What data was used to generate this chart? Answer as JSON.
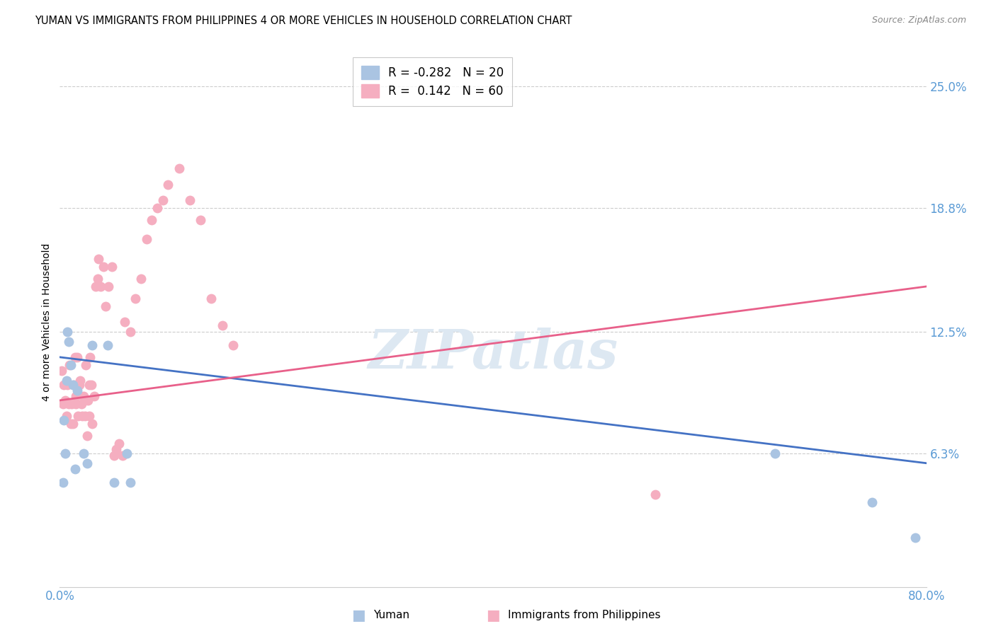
{
  "title": "YUMAN VS IMMIGRANTS FROM PHILIPPINES 4 OR MORE VEHICLES IN HOUSEHOLD CORRELATION CHART",
  "source": "Source: ZipAtlas.com",
  "ylabel": "4 or more Vehicles in Household",
  "ytick_labels": [
    "6.3%",
    "12.5%",
    "18.8%",
    "25.0%"
  ],
  "ytick_values": [
    0.063,
    0.125,
    0.188,
    0.25
  ],
  "xlim": [
    0.0,
    0.8
  ],
  "ylim": [
    -0.005,
    0.265
  ],
  "legend_blue_r": "-0.282",
  "legend_blue_n": "20",
  "legend_pink_r": "0.142",
  "legend_pink_n": "60",
  "legend_label_blue": "Yuman",
  "legend_label_pink": "Immigrants from Philippines",
  "blue_color": "#aac4e2",
  "pink_color": "#f5aec0",
  "blue_line_color": "#4472c4",
  "pink_line_color": "#e8608a",
  "watermark": "ZIPatlas",
  "blue_x": [
    0.003,
    0.004,
    0.005,
    0.006,
    0.007,
    0.008,
    0.01,
    0.012,
    0.014,
    0.016,
    0.022,
    0.025,
    0.03,
    0.044,
    0.05,
    0.062,
    0.065,
    0.66,
    0.75,
    0.79
  ],
  "blue_y": [
    0.048,
    0.08,
    0.063,
    0.1,
    0.125,
    0.12,
    0.108,
    0.098,
    0.055,
    0.095,
    0.063,
    0.058,
    0.118,
    0.118,
    0.048,
    0.063,
    0.048,
    0.063,
    0.038,
    0.02
  ],
  "pink_x": [
    0.002,
    0.003,
    0.004,
    0.005,
    0.006,
    0.007,
    0.008,
    0.009,
    0.01,
    0.011,
    0.012,
    0.013,
    0.014,
    0.015,
    0.015,
    0.016,
    0.017,
    0.018,
    0.019,
    0.02,
    0.021,
    0.022,
    0.023,
    0.024,
    0.025,
    0.026,
    0.027,
    0.027,
    0.028,
    0.029,
    0.03,
    0.032,
    0.033,
    0.035,
    0.036,
    0.038,
    0.04,
    0.042,
    0.045,
    0.048,
    0.05,
    0.052,
    0.055,
    0.058,
    0.06,
    0.065,
    0.07,
    0.075,
    0.08,
    0.085,
    0.09,
    0.095,
    0.1,
    0.11,
    0.12,
    0.13,
    0.14,
    0.15,
    0.16,
    0.55
  ],
  "pink_y": [
    0.105,
    0.088,
    0.098,
    0.09,
    0.082,
    0.098,
    0.088,
    0.108,
    0.078,
    0.088,
    0.078,
    0.098,
    0.112,
    0.092,
    0.088,
    0.112,
    0.082,
    0.098,
    0.1,
    0.088,
    0.082,
    0.092,
    0.082,
    0.108,
    0.072,
    0.09,
    0.098,
    0.082,
    0.112,
    0.098,
    0.078,
    0.092,
    0.148,
    0.152,
    0.162,
    0.148,
    0.158,
    0.138,
    0.148,
    0.158,
    0.062,
    0.065,
    0.068,
    0.062,
    0.13,
    0.125,
    0.142,
    0.152,
    0.172,
    0.182,
    0.188,
    0.192,
    0.2,
    0.208,
    0.192,
    0.182,
    0.142,
    0.128,
    0.118,
    0.042
  ],
  "blue_line_x0": 0.0,
  "blue_line_x1": 0.8,
  "blue_line_y0": 0.112,
  "blue_line_y1": 0.058,
  "pink_line_x0": 0.0,
  "pink_line_x1": 0.8,
  "pink_line_y0": 0.09,
  "pink_line_y1": 0.148
}
